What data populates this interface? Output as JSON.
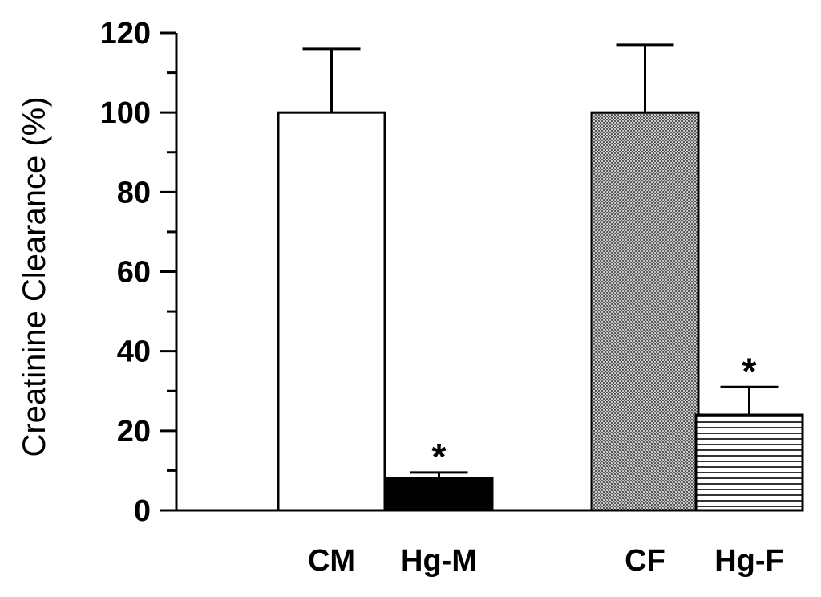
{
  "chart_data": {
    "type": "bar",
    "ylabel": "Creatinine Clearance (%)",
    "xlabel": "",
    "ylim": [
      0,
      120
    ],
    "yticks": [
      0,
      20,
      40,
      60,
      80,
      100,
      120
    ],
    "minor_tick_step": 10,
    "grid": false,
    "categories": [
      "CM",
      "Hg-M",
      "CF",
      "Hg-F"
    ],
    "values": [
      100,
      8,
      100,
      24
    ],
    "error_bars": [
      16,
      1.5,
      17,
      7
    ],
    "significance_markers": [
      "",
      "*",
      "",
      "*"
    ],
    "bar_fills": [
      "white",
      "solid-black",
      "fine-dot-gray",
      "horizontal-lines"
    ],
    "colors": {
      "axis": "#000000",
      "dot_fill": "#8a8a8a"
    }
  }
}
